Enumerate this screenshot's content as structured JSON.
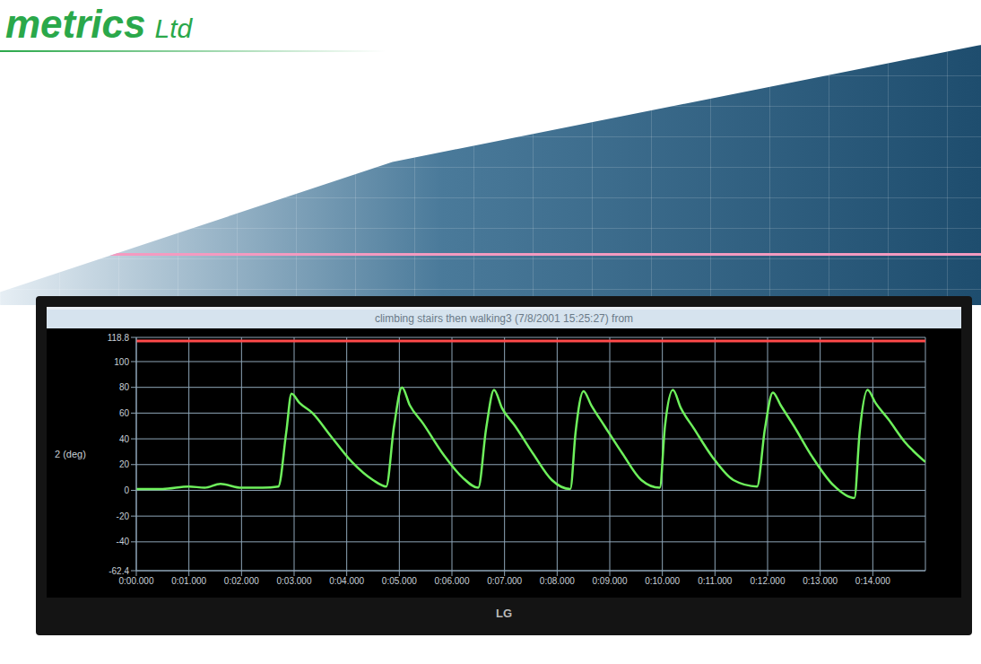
{
  "branding": {
    "logo": "metrics Ltd",
    "monitor": "LG"
  },
  "chart_data": {
    "type": "line",
    "title": "climbing stairs then walking3 (7/8/2001 15:25:27) from",
    "y_label": "2 (deg)",
    "grid": true,
    "x": [
      0,
      0.5,
      1.0,
      1.3,
      1.6,
      2.0,
      2.4,
      2.7,
      2.85,
      2.95,
      3.1,
      3.35,
      3.7,
      4.1,
      4.5,
      4.75,
      4.9,
      5.05,
      5.2,
      5.45,
      5.8,
      6.2,
      6.5,
      6.65,
      6.8,
      6.95,
      7.2,
      7.55,
      7.9,
      8.25,
      8.35,
      8.5,
      8.65,
      8.9,
      9.25,
      9.6,
      9.95,
      10.05,
      10.2,
      10.35,
      10.6,
      10.95,
      11.35,
      11.8,
      11.95,
      12.1,
      12.25,
      12.5,
      12.85,
      13.25,
      13.65,
      13.75,
      13.9,
      14.05,
      14.3,
      14.6,
      15.0
    ],
    "series": [
      {
        "color": "#ff4a4a",
        "values": [
          116,
          116,
          116,
          116,
          116,
          116,
          116,
          116,
          116,
          116,
          116,
          116,
          116,
          116,
          116,
          116,
          116,
          116,
          116,
          116,
          116,
          116,
          116,
          116,
          116,
          116,
          116,
          116,
          116,
          116,
          116,
          116,
          116,
          116,
          116,
          116,
          116,
          116,
          116,
          116,
          116,
          116,
          116,
          116,
          116,
          116,
          116,
          116,
          116,
          116,
          116,
          116,
          116,
          116,
          116,
          116,
          116
        ]
      },
      {
        "color": "#6ef05c",
        "values": [
          1,
          1,
          3,
          2,
          5,
          2,
          2,
          3,
          45,
          75,
          68,
          60,
          42,
          22,
          8,
          3,
          50,
          80,
          66,
          52,
          30,
          10,
          2,
          48,
          78,
          64,
          50,
          28,
          8,
          1,
          45,
          77,
          66,
          50,
          28,
          8,
          2,
          50,
          78,
          64,
          48,
          26,
          8,
          3,
          48,
          76,
          66,
          50,
          26,
          4,
          -6,
          45,
          78,
          68,
          55,
          38,
          22
        ]
      }
    ],
    "xlim": [
      0,
      15
    ],
    "xticks": [
      {
        "value": 0,
        "label": "0:00.000"
      },
      {
        "value": 1,
        "label": "0:01.000"
      },
      {
        "value": 2,
        "label": "0:02.000"
      },
      {
        "value": 3,
        "label": "0:03.000"
      },
      {
        "value": 4,
        "label": "0:04.000"
      },
      {
        "value": 5,
        "label": "0:05.000"
      },
      {
        "value": 6,
        "label": "0:06.000"
      },
      {
        "value": 7,
        "label": "0:07.000"
      },
      {
        "value": 8,
        "label": "0:08.000"
      },
      {
        "value": 9,
        "label": "0:09.000"
      },
      {
        "value": 10,
        "label": "0:10.000"
      },
      {
        "value": 11,
        "label": "0:11.000"
      },
      {
        "value": 12,
        "label": "0:12.000"
      },
      {
        "value": 13,
        "label": "0:13.000"
      },
      {
        "value": 14,
        "label": "0:14.000"
      }
    ],
    "ylim": [
      -62.4,
      118.8
    ],
    "yticks": [
      -62.4,
      -40,
      -20,
      0,
      20,
      40,
      60,
      80,
      100,
      118.8
    ]
  }
}
